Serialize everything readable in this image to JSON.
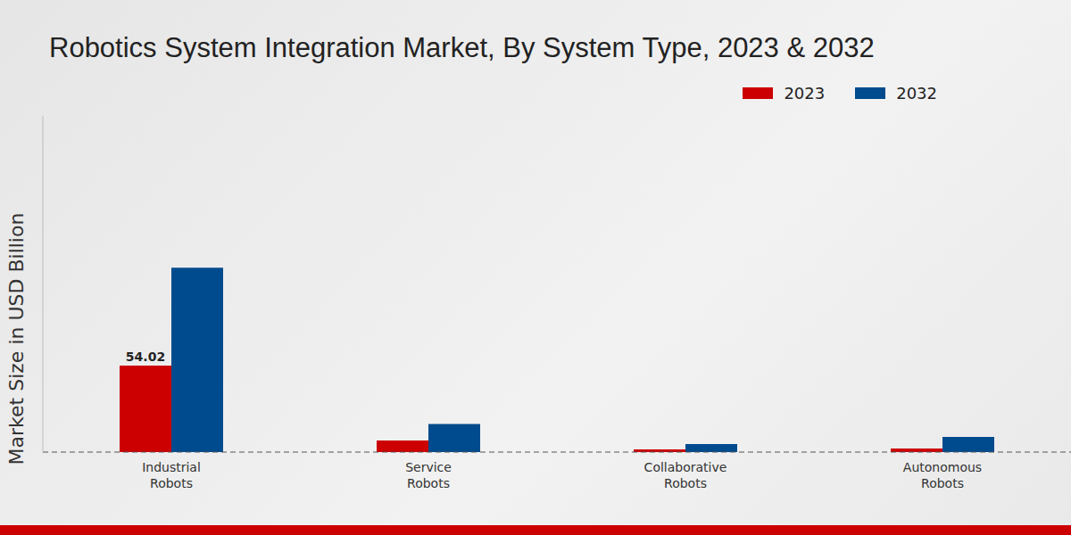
{
  "chart_data": {
    "type": "bar",
    "title": "Robotics System Integration Market, By System Type, 2023 & 2032",
    "y_label": "Market Size in USD Billion",
    "categories": [
      "Industrial Robots",
      "Service Robots",
      "Collaborative Robots",
      "Autonomous Robots"
    ],
    "series": [
      {
        "name": "2023",
        "color": "#cc0000",
        "values": [
          54.02,
          7.2,
          1.7,
          2.2
        ],
        "value_labels": [
          "54.02",
          null,
          null,
          null
        ]
      },
      {
        "name": "2032",
        "color": "#004b8d",
        "values": [
          115.2,
          17.6,
          5,
          9.4
        ]
      }
    ],
    "ylim": [
      0,
      210
    ],
    "yticks": [],
    "tick_labels": "x",
    "legend": "top right",
    "grid": false
  }
}
